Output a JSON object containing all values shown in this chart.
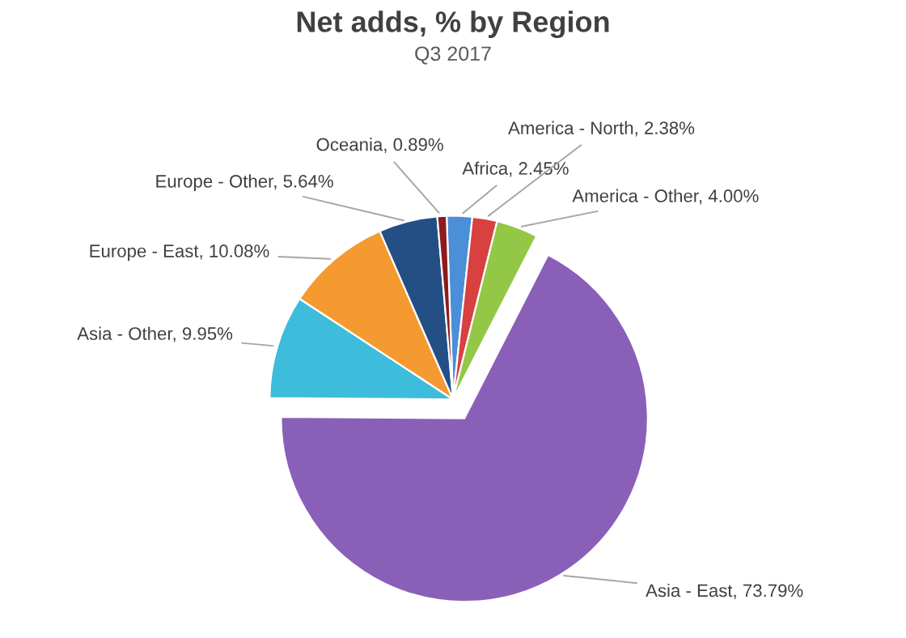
{
  "chart_data": {
    "type": "pie",
    "title": "Net adds, % by Region",
    "subtitle": "Q3 2017",
    "categories": [
      "Africa",
      "America - North",
      "America - Other",
      "Asia - East",
      "Asia - Other",
      "Europe - East",
      "Europe - Other",
      "Oceania"
    ],
    "values": [
      2.45,
      2.38,
      4.0,
      73.79,
      9.95,
      10.08,
      5.64,
      0.89
    ],
    "value_labels": [
      "2.45%",
      "2.38%",
      "4.00%",
      "73.79%",
      "9.95%",
      "10.08%",
      "5.64%",
      "0.89%"
    ],
    "colors": [
      "#4a8fd8",
      "#d94040",
      "#92c846",
      "#8a5fb8",
      "#3ebcdc",
      "#f49a30",
      "#234f85",
      "#8c1c1c"
    ],
    "legend": false
  }
}
